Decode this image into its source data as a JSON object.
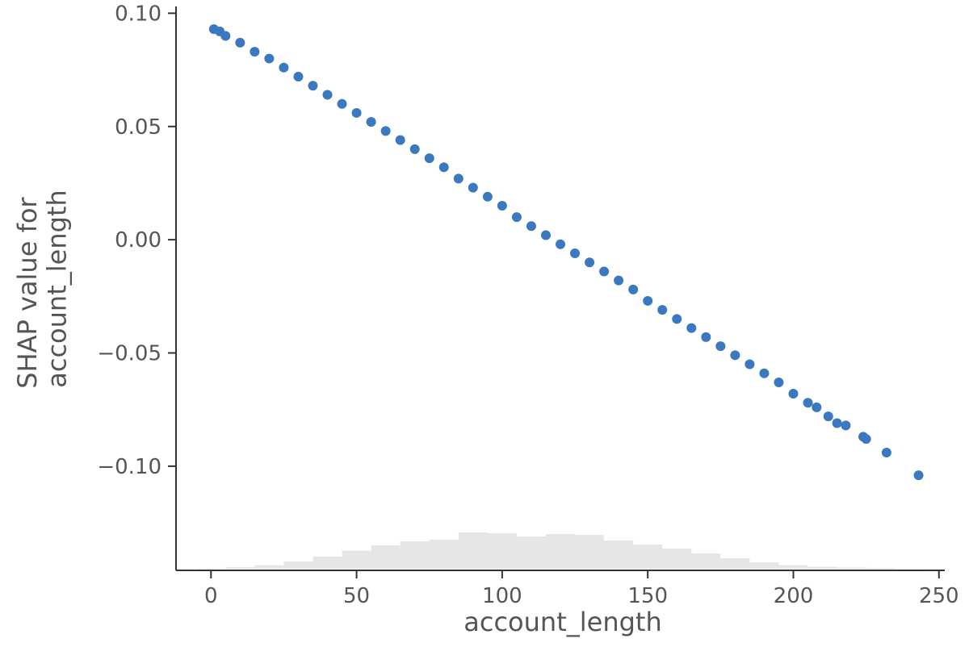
{
  "chart_data": {
    "type": "scatter",
    "title": "",
    "xlabel": "account_length",
    "ylabel_lines": [
      "SHAP value for",
      "account_length"
    ],
    "xlim": [
      -12,
      252
    ],
    "ylim": [
      -0.146,
      0.103
    ],
    "x_ticks": [
      0,
      50,
      100,
      150,
      200,
      250
    ],
    "y_ticks": [
      0.1,
      0.05,
      0.0,
      -0.05,
      -0.1
    ],
    "x_tick_labels": [
      "0",
      "50",
      "100",
      "150",
      "200",
      "250"
    ],
    "y_tick_labels": [
      "0.10",
      "0.05",
      "0.00",
      "−0.05",
      "−0.10"
    ],
    "grid": false,
    "series": [
      {
        "color": "#3a78bf",
        "x": [
          1,
          3,
          5,
          10,
          15,
          20,
          25,
          30,
          35,
          40,
          45,
          50,
          55,
          60,
          65,
          70,
          75,
          80,
          85,
          90,
          95,
          100,
          105,
          110,
          115,
          120,
          125,
          130,
          135,
          140,
          145,
          150,
          155,
          160,
          165,
          170,
          175,
          180,
          185,
          190,
          195,
          200,
          205,
          208,
          212,
          215,
          218,
          224,
          225,
          232,
          243
        ],
        "y": [
          0.093,
          0.092,
          0.09,
          0.087,
          0.083,
          0.08,
          0.076,
          0.072,
          0.068,
          0.064,
          0.06,
          0.056,
          0.052,
          0.048,
          0.044,
          0.04,
          0.036,
          0.032,
          0.027,
          0.023,
          0.019,
          0.015,
          0.01,
          0.006,
          0.002,
          -0.002,
          -0.006,
          -0.01,
          -0.014,
          -0.018,
          -0.022,
          -0.027,
          -0.031,
          -0.035,
          -0.039,
          -0.043,
          -0.047,
          -0.051,
          -0.055,
          -0.059,
          -0.063,
          -0.068,
          -0.072,
          -0.074,
          -0.078,
          -0.081,
          -0.082,
          -0.087,
          -0.088,
          -0.094,
          -0.104
        ]
      }
    ],
    "histogram": {
      "color": "#e6e6e6",
      "bin_edges": [
        -5,
        5,
        15,
        25,
        35,
        45,
        55,
        65,
        75,
        85,
        95,
        105,
        115,
        125,
        135,
        145,
        155,
        165,
        175,
        185,
        195,
        205,
        215,
        225,
        235,
        245
      ],
      "counts": [
        1,
        4,
        9,
        18,
        30,
        45,
        58,
        68,
        72,
        90,
        88,
        80,
        86,
        84,
        70,
        60,
        50,
        38,
        26,
        16,
        9,
        5,
        3,
        2,
        1
      ]
    }
  }
}
